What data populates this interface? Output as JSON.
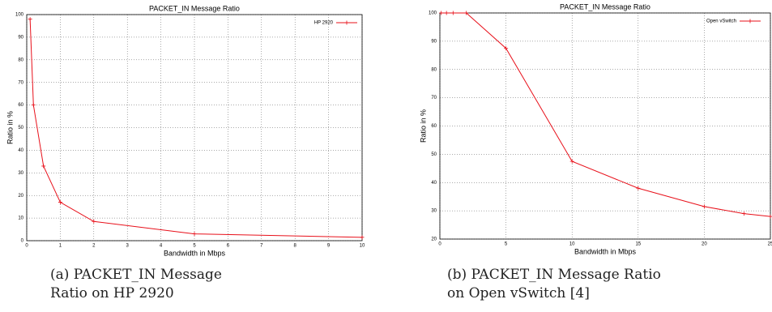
{
  "chart_data": [
    {
      "type": "line",
      "title": "PACKET_IN Message Ratio",
      "x_label": "Bandwidth in Mbps",
      "y_label": "Ratio in %",
      "caption": "(a) PACKET_IN Message Ratio on HP 2920",
      "x": [
        0.1,
        0.2,
        0.5,
        1,
        2,
        5,
        10
      ],
      "series": [
        {
          "name": "HP 2920",
          "color": "#e8101a",
          "values": [
            98,
            60,
            33,
            17,
            8.5,
            3,
            1.5
          ]
        }
      ],
      "xlim": [
        0,
        10
      ],
      "xticks": [
        0,
        1,
        2,
        3,
        4,
        5,
        6,
        7,
        8,
        9,
        10
      ],
      "ylim": [
        0,
        100
      ],
      "yticks": [
        0,
        10,
        20,
        30,
        40,
        50,
        60,
        70,
        80,
        90,
        100
      ],
      "grid": true,
      "legend": "top-right"
    },
    {
      "type": "line",
      "title": "PACKET_IN Message Ratio",
      "x_label": "Bandwidth in Mbps",
      "y_label": "Ratio in %",
      "caption": "(b) PACKET_IN Message Ratio on Open vSwitch [4]",
      "x": [
        0.1,
        0.5,
        1,
        2,
        5,
        10,
        15,
        20,
        23,
        25
      ],
      "series": [
        {
          "name": "Open vSwitch",
          "color": "#e8101a",
          "values": [
            100,
            100,
            100,
            100,
            87.5,
            47.5,
            38,
            31.5,
            29,
            28
          ]
        }
      ],
      "xlim": [
        0,
        25
      ],
      "xticks": [
        0,
        5,
        10,
        15,
        20,
        25
      ],
      "ylim": [
        20,
        100
      ],
      "yticks": [
        20,
        30,
        40,
        50,
        60,
        70,
        80,
        90,
        100
      ],
      "grid": true,
      "legend": "top-right"
    }
  ]
}
